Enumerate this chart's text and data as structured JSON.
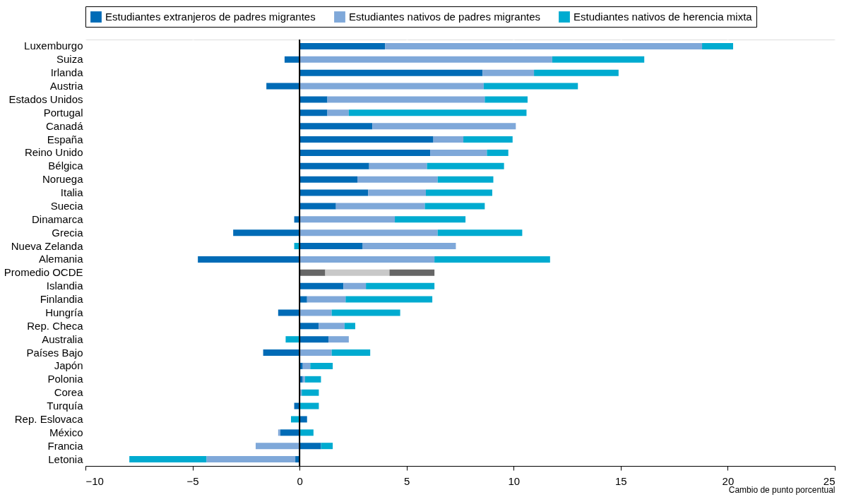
{
  "chart_data": {
    "type": "bar",
    "orientation": "horizontal",
    "stacked": true,
    "xlabel": "Cambio de punto porcentual",
    "categories": [
      "Luxemburgo",
      "Suiza",
      "Irlanda",
      "Austria",
      "Estados Unidos",
      "Portugal",
      "Canadá",
      "España",
      "Reino Unido",
      "Bélgica",
      "Noruega",
      "Italia",
      "Suecia",
      "Dinamarca",
      "Grecia",
      "Nueva Zelanda",
      "Alemania",
      "Promedio OCDE",
      "Islandia",
      "Finlandia",
      "Hungría",
      "Rep. Checa",
      "Australia",
      "Países Bajo",
      "Japón",
      "Polonia",
      "Corea",
      "Turquía",
      "Rep. Eslovaca",
      "México",
      "Francia",
      "Letonia"
    ],
    "series": [
      {
        "name": "Estudiantes extranjeros de padres migrantes",
        "color": "#006bb6",
        "colors": [
          "#006bb6",
          "#006bb6",
          "#006bb6",
          "#006bb6",
          "#006bb6",
          "#006bb6",
          "#006bb6",
          "#006bb6",
          "#006bb6",
          "#006bb6",
          "#006bb6",
          "#006bb6",
          "#006bb6",
          "#006bb6",
          "#006bb6",
          "#006bb6",
          "#006bb6",
          "#666666",
          "#006bb6",
          "#006bb6",
          "#006bb6",
          "#006bb6",
          "#006bb6",
          "#006bb6",
          "#006bb6",
          "#006bb6",
          "#006bb6",
          "#006bb6",
          "#006bb6",
          "#006bb6",
          "#006bb6",
          "#006bb6"
        ],
        "values": [
          4.0,
          -0.7,
          8.55,
          -1.55,
          1.3,
          1.3,
          3.4,
          6.25,
          6.1,
          3.25,
          2.7,
          3.2,
          1.7,
          -0.25,
          -3.1,
          2.95,
          -4.75,
          1.2,
          2.05,
          0.35,
          -1.0,
          0.9,
          1.35,
          -1.7,
          0.15,
          0.15,
          0.0,
          -0.25,
          0.35,
          -0.9,
          1.0,
          -0.2
        ]
      },
      {
        "name": "Estudiantes nativos de padres migrantes",
        "color": "#7fa8d9",
        "colors": [
          "#7fa8d9",
          "#7fa8d9",
          "#7fa8d9",
          "#7fa8d9",
          "#7fa8d9",
          "#7fa8d9",
          "#7fa8d9",
          "#7fa8d9",
          "#7fa8d9",
          "#7fa8d9",
          "#7fa8d9",
          "#7fa8d9",
          "#7fa8d9",
          "#7fa8d9",
          "#7fa8d9",
          "#7fa8d9",
          "#7fa8d9",
          "#c8c8c8",
          "#7fa8d9",
          "#7fa8d9",
          "#7fa8d9",
          "#7fa8d9",
          "#7fa8d9",
          "#7fa8d9",
          "#7fa8d9",
          "#7fa8d9",
          "#7fa8d9",
          "#7fa8d9",
          "#7fa8d9",
          "#7fa8d9",
          "#7fa8d9",
          "#7fa8d9"
        ],
        "values": [
          14.8,
          11.8,
          2.4,
          8.6,
          7.35,
          1.0,
          6.7,
          1.4,
          2.65,
          2.7,
          3.75,
          2.7,
          4.15,
          4.45,
          6.45,
          4.35,
          6.3,
          3.0,
          1.05,
          1.8,
          1.5,
          1.2,
          0.95,
          1.5,
          0.35,
          0.1,
          0.1,
          0.0,
          0.0,
          -0.1,
          -2.05,
          -4.15
        ]
      },
      {
        "name": "Estudiantes nativos de herencia mixta",
        "color": "#00abd0",
        "colors": [
          "#00abd0",
          "#00abd0",
          "#00abd0",
          "#00abd0",
          "#00abd0",
          "#00abd0",
          "#00abd0",
          "#00abd0",
          "#00abd0",
          "#00abd0",
          "#00abd0",
          "#00abd0",
          "#00abd0",
          "#00abd0",
          "#00abd0",
          "#00abd0",
          "#00abd0",
          "#666666",
          "#00abd0",
          "#00abd0",
          "#00abd0",
          "#00abd0",
          "#00abd0",
          "#00abd0",
          "#00abd0",
          "#00abd0",
          "#00abd0",
          "#00abd0",
          "#00abd0",
          "#00abd0",
          "#00abd0",
          "#00abd0"
        ],
        "values": [
          1.45,
          4.3,
          3.95,
          4.4,
          2.0,
          8.3,
          0.0,
          2.3,
          1.0,
          3.6,
          2.6,
          3.1,
          2.8,
          3.3,
          3.95,
          -0.25,
          5.4,
          2.1,
          3.2,
          4.05,
          3.2,
          0.5,
          -0.65,
          1.8,
          1.05,
          0.75,
          0.8,
          0.9,
          -0.4,
          0.65,
          0.55,
          -3.6
        ]
      }
    ],
    "xlim": [
      -10,
      25
    ],
    "xticks": [
      -10,
      -5,
      0,
      5,
      10,
      15,
      20,
      25
    ],
    "ref_lines": [
      {
        "axis": "x",
        "value": 0,
        "color": "#000000"
      }
    ],
    "grid": "x",
    "legend": "top"
  }
}
